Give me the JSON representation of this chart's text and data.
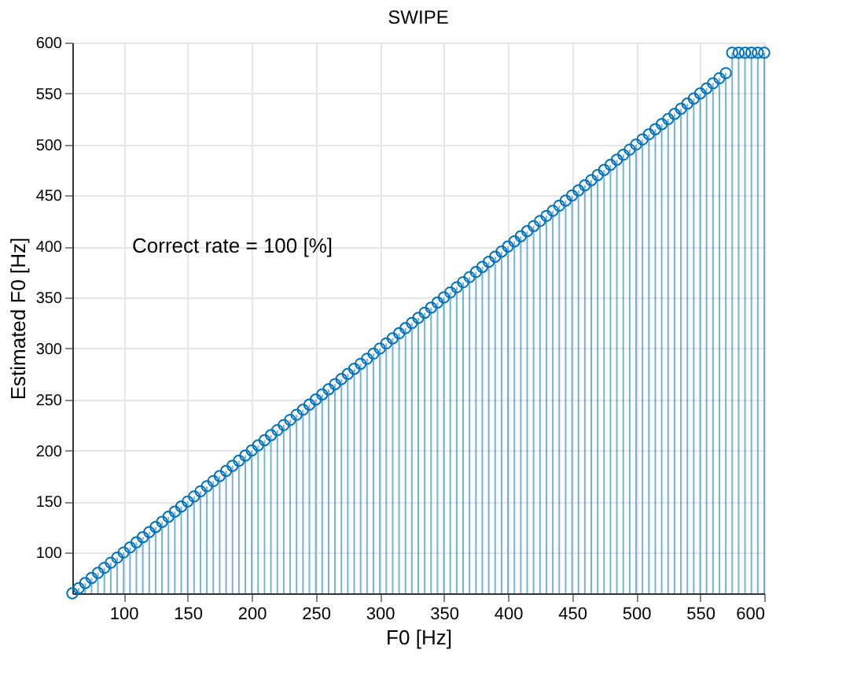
{
  "chart_data": {
    "type": "lollipop",
    "title": "SWIPE",
    "xlabel": "F0 [Hz]",
    "ylabel": "Estimated F0 [Hz]",
    "x": [
      60,
      65,
      70,
      75,
      80,
      85,
      90,
      95,
      100,
      105,
      110,
      115,
      120,
      125,
      130,
      135,
      140,
      145,
      150,
      155,
      160,
      165,
      170,
      175,
      180,
      185,
      190,
      195,
      200,
      205,
      210,
      215,
      220,
      225,
      230,
      235,
      240,
      245,
      250,
      255,
      260,
      265,
      270,
      275,
      280,
      285,
      290,
      295,
      300,
      305,
      310,
      315,
      320,
      325,
      330,
      335,
      340,
      345,
      350,
      355,
      360,
      365,
      370,
      375,
      380,
      385,
      390,
      395,
      400,
      405,
      410,
      415,
      420,
      425,
      430,
      435,
      440,
      445,
      450,
      455,
      460,
      465,
      470,
      475,
      480,
      485,
      490,
      495,
      500,
      505,
      510,
      515,
      520,
      525,
      530,
      535,
      540,
      545,
      550,
      555,
      560,
      565,
      570,
      575,
      580,
      585,
      590,
      595,
      600
    ],
    "series": [
      {
        "color": "#0072bd",
        "values": [
          60,
          65,
          70,
          75,
          80,
          85,
          90,
          95,
          100,
          105,
          110,
          115,
          120,
          125,
          130,
          135,
          140,
          145,
          150,
          155,
          160,
          165,
          170,
          175,
          180,
          185,
          190,
          195,
          200,
          205,
          210,
          215,
          220,
          225,
          230,
          235,
          240,
          245,
          250,
          255,
          260,
          265,
          270,
          275,
          280,
          285,
          290,
          295,
          300,
          305,
          310,
          315,
          320,
          325,
          330,
          335,
          340,
          345,
          350,
          355,
          360,
          365,
          370,
          375,
          380,
          385,
          390,
          395,
          400,
          405,
          410,
          415,
          420,
          425,
          430,
          435,
          440,
          445,
          450,
          455,
          460,
          465,
          470,
          475,
          480,
          485,
          490,
          495,
          500,
          505,
          510,
          515,
          520,
          525,
          530,
          535,
          540,
          545,
          550,
          555,
          560,
          565,
          570,
          590,
          590,
          590,
          590,
          590,
          590
        ]
      }
    ],
    "xlim": [
      60,
      600
    ],
    "ylim": [
      60,
      600
    ],
    "xticks": [
      100,
      150,
      200,
      250,
      300,
      350,
      400,
      450,
      500,
      550,
      600
    ],
    "yticks": [
      100,
      150,
      200,
      250,
      300,
      350,
      400,
      450,
      500,
      550,
      600
    ],
    "grid": true,
    "marker": "circle",
    "annotations": [
      "Correct rate = 100 [%]"
    ]
  }
}
